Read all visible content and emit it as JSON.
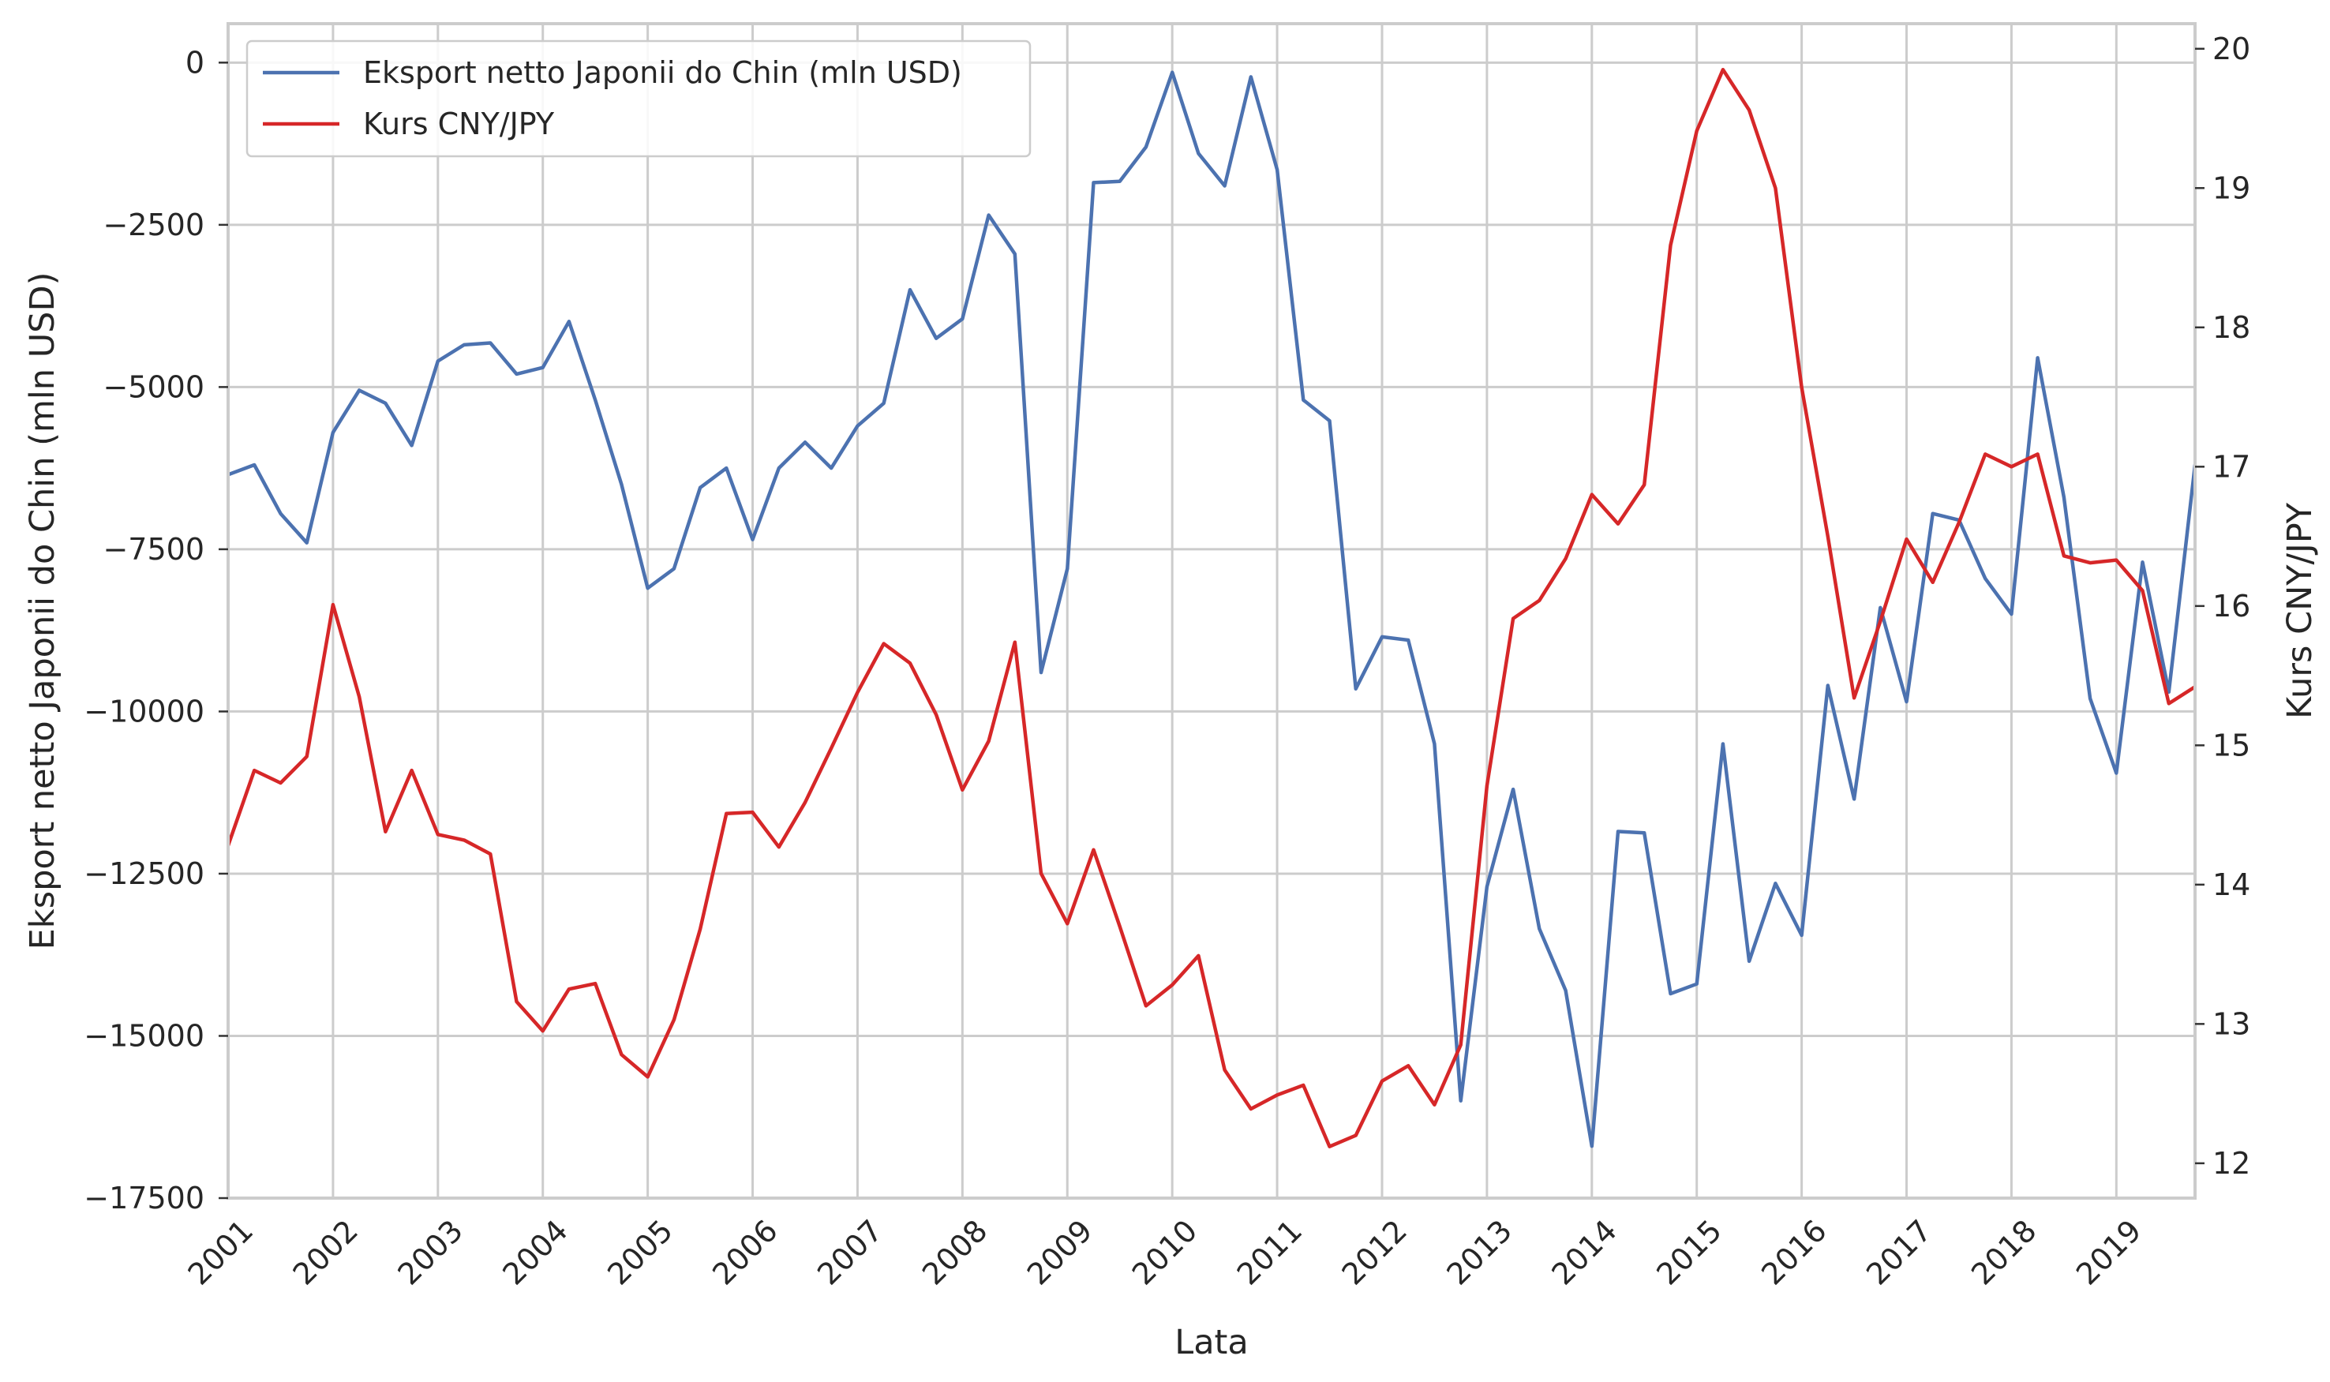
{
  "chart_data": {
    "type": "line",
    "xlabel": "Lata",
    "ylabel_left": "Eksport netto Japonii do Chin (mln USD)",
    "ylabel_right": "Kurs CNY/JPY",
    "x_tick_labels": [
      "2001",
      "2002",
      "2003",
      "2004",
      "2005",
      "2006",
      "2007",
      "2008",
      "2009",
      "2010",
      "2011",
      "2012",
      "2013",
      "2014",
      "2015",
      "2016",
      "2017",
      "2018",
      "2019"
    ],
    "xlim": [
      2001.0,
      2019.75
    ],
    "ylim_left": [
      -17500,
      600
    ],
    "yticks_left": [
      0,
      -2500,
      -5000,
      -7500,
      -10000,
      -12500,
      -15000,
      -17500
    ],
    "ylim_right": [
      11.75,
      20.18
    ],
    "yticks_right": [
      12,
      13,
      14,
      15,
      16,
      17,
      18,
      19,
      20
    ],
    "grid": true,
    "legend_position": "top-left",
    "series": [
      {
        "name": "Eksport netto Japonii do Chin (mln USD)",
        "axis": "left",
        "color": "#4c72b0",
        "x": [
          2001.0,
          2001.25,
          2001.5,
          2001.75,
          2002.0,
          2002.25,
          2002.5,
          2002.75,
          2003.0,
          2003.25,
          2003.5,
          2003.75,
          2004.0,
          2004.25,
          2004.5,
          2004.75,
          2005.0,
          2005.25,
          2005.5,
          2005.75,
          2006.0,
          2006.25,
          2006.5,
          2006.75,
          2007.0,
          2007.25,
          2007.5,
          2007.75,
          2008.0,
          2008.25,
          2008.5,
          2008.75,
          2009.0,
          2009.25,
          2009.5,
          2009.75,
          2010.0,
          2010.25,
          2010.5,
          2010.75,
          2011.0,
          2011.25,
          2011.5,
          2011.75,
          2012.0,
          2012.25,
          2012.5,
          2012.75,
          2013.0,
          2013.25,
          2013.5,
          2013.75,
          2014.0,
          2014.25,
          2014.5,
          2014.75,
          2015.0,
          2015.25,
          2015.5,
          2015.75,
          2016.0,
          2016.25,
          2016.5,
          2016.75,
          2017.0,
          2017.25,
          2017.5,
          2017.75,
          2018.0,
          2018.25,
          2018.5,
          2018.75,
          2019.0,
          2019.25,
          2019.5,
          2019.75
        ],
        "y": [
          -6350,
          -6200,
          -6950,
          -7400,
          -5700,
          -5050,
          -5250,
          -5900,
          -4600,
          -4350,
          -4320,
          -4800,
          -4700,
          -3990,
          -5200,
          -6500,
          -8100,
          -7800,
          -6550,
          -6250,
          -7350,
          -6250,
          -5850,
          -6250,
          -5600,
          -5250,
          -3500,
          -4250,
          -3950,
          -2350,
          -2950,
          -9400,
          -7800,
          -1850,
          -1830,
          -1300,
          -150,
          -1400,
          -1900,
          -220,
          -1650,
          -5200,
          -5520,
          -9650,
          -8850,
          -8900,
          -10500,
          -16000,
          -12700,
          -11200,
          -13350,
          -14300,
          -16700,
          -11850,
          -11870,
          -14350,
          -14200,
          -10500,
          -13850,
          -12650,
          -13450,
          -9600,
          -11350,
          -8400,
          -9850,
          -6950,
          -7050,
          -7950,
          -8500,
          -4550,
          -6700,
          -9800,
          -10950,
          -7700,
          -9700,
          -6200
        ]
      },
      {
        "name": "Kurs CNY/JPY",
        "axis": "right",
        "color": "#d62728",
        "x": [
          2001.0,
          2001.25,
          2001.5,
          2001.75,
          2002.0,
          2002.25,
          2002.5,
          2002.75,
          2003.0,
          2003.25,
          2003.5,
          2003.75,
          2004.0,
          2004.25,
          2004.5,
          2004.75,
          2005.0,
          2005.25,
          2005.5,
          2005.75,
          2006.0,
          2006.25,
          2006.5,
          2006.75,
          2007.0,
          2007.25,
          2007.5,
          2007.75,
          2008.0,
          2008.25,
          2008.5,
          2008.75,
          2009.0,
          2009.25,
          2009.5,
          2009.75,
          2010.0,
          2010.25,
          2010.5,
          2010.75,
          2011.0,
          2011.25,
          2011.5,
          2011.75,
          2012.0,
          2012.25,
          2012.5,
          2012.75,
          2013.0,
          2013.25,
          2013.5,
          2013.75,
          2014.0,
          2014.25,
          2014.5,
          2014.75,
          2015.0,
          2015.25,
          2015.5,
          2015.75,
          2016.0,
          2016.25,
          2016.5,
          2016.75,
          2017.0,
          2017.25,
          2017.5,
          2017.75,
          2018.0,
          2018.25,
          2018.5,
          2018.75,
          2019.0,
          2019.25,
          2019.5,
          2019.75
        ],
        "y": [
          14.28,
          14.82,
          14.73,
          14.92,
          16.01,
          15.35,
          14.38,
          14.82,
          14.36,
          14.32,
          14.22,
          13.16,
          12.95,
          13.25,
          13.29,
          12.78,
          12.62,
          13.03,
          13.68,
          14.51,
          14.52,
          14.27,
          14.59,
          14.98,
          15.38,
          15.73,
          15.59,
          15.22,
          14.68,
          15.03,
          15.74,
          14.08,
          13.72,
          14.25,
          13.7,
          13.13,
          13.28,
          13.49,
          12.67,
          12.39,
          12.49,
          12.56,
          12.12,
          12.2,
          12.59,
          12.7,
          12.42,
          12.85,
          14.71,
          15.91,
          16.04,
          16.34,
          16.8,
          16.59,
          16.87,
          18.59,
          19.41,
          19.85,
          19.56,
          19.0,
          17.57,
          16.5,
          15.34,
          15.89,
          16.48,
          16.17,
          16.6,
          17.09,
          17.0,
          17.09,
          16.36,
          16.31,
          16.33,
          16.11,
          15.3,
          15.42
        ]
      }
    ]
  }
}
